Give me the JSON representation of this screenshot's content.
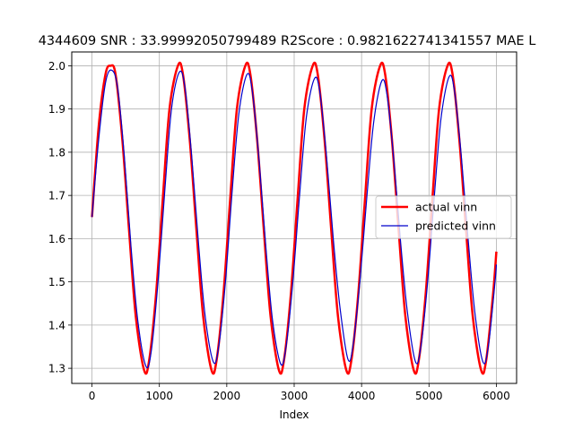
{
  "chart_data": {
    "type": "line",
    "title": "4344609  SNR : 33.99992050799489 R2Score : 0.9821622741341557 MAE L",
    "xlabel": "Index",
    "ylabel": "",
    "xlim": [
      -300,
      6300
    ],
    "ylim": [
      1.265,
      2.032
    ],
    "xticks": [
      0,
      1000,
      2000,
      3000,
      4000,
      5000,
      6000
    ],
    "xtick_labels": [
      "0",
      "1000",
      "2000",
      "3000",
      "4000",
      "5000",
      "6000"
    ],
    "yticks": [
      1.3,
      1.4,
      1.5,
      1.6,
      1.7,
      1.8,
      1.9,
      2.0
    ],
    "ytick_labels": [
      "1.3",
      "1.4",
      "1.5",
      "1.6",
      "1.7",
      "1.8",
      "1.9",
      "2.0"
    ],
    "grid": true,
    "legend_position": "center-right",
    "series": [
      {
        "name": "actual vinn",
        "color": "#ff0000",
        "line_width": "thick",
        "x": [
          0,
          100,
          200,
          275,
          350,
          450,
          550,
          650,
          775,
          850,
          950,
          1050,
          1150,
          1275,
          1350,
          1450,
          1550,
          1650,
          1775,
          1850,
          1950,
          2050,
          2150,
          2275,
          2350,
          2450,
          2550,
          2650,
          2775,
          2850,
          2950,
          3050,
          3150,
          3275,
          3350,
          3450,
          3550,
          3650,
          3775,
          3850,
          3950,
          4050,
          4150,
          4275,
          4350,
          4450,
          4550,
          4650,
          4775,
          4850,
          4950,
          5050,
          5150,
          5275,
          5350,
          5450,
          5550,
          5650,
          5775,
          5850,
          5950,
          6000
        ],
        "y": [
          1.65,
          1.86,
          1.98,
          2.0,
          1.98,
          1.83,
          1.62,
          1.42,
          1.295,
          1.32,
          1.47,
          1.69,
          1.9,
          2.0,
          1.98,
          1.83,
          1.62,
          1.42,
          1.295,
          1.32,
          1.47,
          1.69,
          1.9,
          2.0,
          1.98,
          1.83,
          1.62,
          1.42,
          1.295,
          1.32,
          1.47,
          1.69,
          1.9,
          2.0,
          1.98,
          1.83,
          1.62,
          1.42,
          1.295,
          1.32,
          1.47,
          1.69,
          1.9,
          2.0,
          1.98,
          1.83,
          1.62,
          1.42,
          1.295,
          1.32,
          1.47,
          1.69,
          1.9,
          2.0,
          1.98,
          1.83,
          1.62,
          1.42,
          1.295,
          1.32,
          1.47,
          1.57
        ]
      },
      {
        "name": "predicted vinn",
        "color": "#0000cc",
        "line_width": "thin",
        "x": [
          0,
          100,
          200,
          290,
          380,
          480,
          580,
          680,
          800,
          880,
          980,
          1080,
          1180,
          1295,
          1380,
          1480,
          1580,
          1680,
          1800,
          1880,
          1980,
          2080,
          2180,
          2300,
          2380,
          2480,
          2580,
          2680,
          2800,
          2880,
          2980,
          3080,
          3180,
          3300,
          3380,
          3480,
          3580,
          3680,
          3800,
          3880,
          3980,
          4080,
          4180,
          4300,
          4380,
          4480,
          4580,
          4680,
          4800,
          4880,
          4980,
          5080,
          5180,
          5300,
          5380,
          5480,
          5580,
          5680,
          5800,
          5880,
          5980,
          6000
        ],
        "y": [
          1.65,
          1.83,
          1.96,
          1.99,
          1.95,
          1.79,
          1.58,
          1.41,
          1.305,
          1.34,
          1.5,
          1.71,
          1.9,
          1.985,
          1.95,
          1.79,
          1.59,
          1.42,
          1.315,
          1.35,
          1.5,
          1.71,
          1.89,
          1.98,
          1.94,
          1.78,
          1.58,
          1.41,
          1.31,
          1.35,
          1.5,
          1.7,
          1.88,
          1.97,
          1.94,
          1.79,
          1.6,
          1.44,
          1.32,
          1.36,
          1.51,
          1.7,
          1.87,
          1.965,
          1.93,
          1.78,
          1.59,
          1.43,
          1.315,
          1.35,
          1.5,
          1.7,
          1.88,
          1.975,
          1.94,
          1.79,
          1.6,
          1.43,
          1.315,
          1.35,
          1.5,
          1.54
        ]
      }
    ]
  }
}
